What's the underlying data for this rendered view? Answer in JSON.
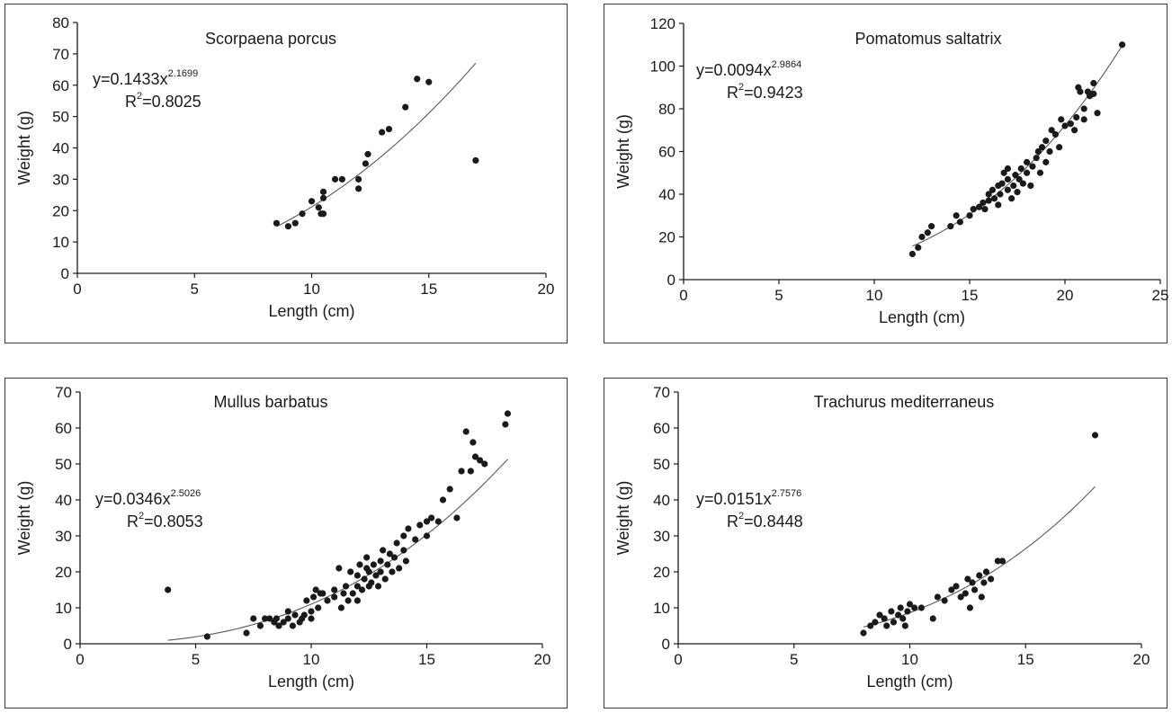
{
  "chart_data": [
    {
      "type": "scatter",
      "title": "Scorpaena porcus",
      "xlabel": "Length (cm)",
      "ylabel": "Weight (g)",
      "xlim": [
        0,
        20
      ],
      "ylim": [
        0,
        80
      ],
      "xticks": [
        "0",
        "5",
        "10",
        "15",
        "20"
      ],
      "yticks": [
        "0",
        "10",
        "20",
        "30",
        "40",
        "50",
        "60",
        "70",
        "80"
      ],
      "equation": {
        "prefix": "y=0.1433x",
        "exponent": "2.1699",
        "r2_label": "R",
        "r2_sup": "2",
        "r2_value": "=0.8025"
      },
      "fit": {
        "a": 0.1433,
        "b": 2.1699,
        "x_range": [
          8.5,
          17
        ]
      },
      "points": [
        [
          8.5,
          16
        ],
        [
          9,
          15
        ],
        [
          9.3,
          16
        ],
        [
          9.6,
          19
        ],
        [
          10,
          23
        ],
        [
          10.3,
          21
        ],
        [
          10.4,
          19
        ],
        [
          10.5,
          19
        ],
        [
          10.5,
          24
        ],
        [
          10.5,
          26
        ],
        [
          11,
          30
        ],
        [
          11.3,
          30
        ],
        [
          12,
          30
        ],
        [
          12,
          27
        ],
        [
          12.3,
          35
        ],
        [
          12.4,
          38
        ],
        [
          13,
          45
        ],
        [
          13.3,
          46
        ],
        [
          14,
          53
        ],
        [
          14.5,
          62
        ],
        [
          15,
          61
        ],
        [
          17,
          36
        ]
      ]
    },
    {
      "type": "scatter",
      "title": "Pomatomus saltatrix",
      "xlabel": "Length (cm)",
      "ylabel": "Weight (g)",
      "xlim": [
        0,
        25
      ],
      "ylim": [
        0,
        120
      ],
      "xticks": [
        "0",
        "5",
        "10",
        "15",
        "20",
        "25"
      ],
      "yticks": [
        "0",
        "20",
        "40",
        "60",
        "80",
        "100",
        "120"
      ],
      "equation": {
        "prefix": "y=0.0094x",
        "exponent": "2.9864",
        "r2_label": "R",
        "r2_sup": "2",
        "r2_value": "=0.9423"
      },
      "fit": {
        "a": 0.0094,
        "b": 2.9864,
        "x_range": [
          12,
          23
        ]
      },
      "points": [
        [
          12,
          12
        ],
        [
          12.3,
          15
        ],
        [
          12.5,
          20
        ],
        [
          12.8,
          22
        ],
        [
          13,
          25
        ],
        [
          14,
          25
        ],
        [
          14.3,
          30
        ],
        [
          14.5,
          27
        ],
        [
          15,
          30
        ],
        [
          15.2,
          33
        ],
        [
          15.5,
          34
        ],
        [
          15.7,
          36
        ],
        [
          15.8,
          33
        ],
        [
          16,
          37
        ],
        [
          16,
          40
        ],
        [
          16.2,
          42
        ],
        [
          16.3,
          38
        ],
        [
          16.5,
          35
        ],
        [
          16.5,
          44
        ],
        [
          16.6,
          40
        ],
        [
          16.7,
          45
        ],
        [
          16.8,
          50
        ],
        [
          17,
          42
        ],
        [
          17,
          47
        ],
        [
          17,
          52
        ],
        [
          17.2,
          38
        ],
        [
          17.3,
          44
        ],
        [
          17.4,
          49
        ],
        [
          17.5,
          41
        ],
        [
          17.6,
          47
        ],
        [
          17.7,
          52
        ],
        [
          17.8,
          45
        ],
        [
          18,
          50
        ],
        [
          18,
          55
        ],
        [
          18.2,
          44
        ],
        [
          18.3,
          53
        ],
        [
          18.5,
          57
        ],
        [
          18.6,
          60
        ],
        [
          18.7,
          50
        ],
        [
          18.8,
          62
        ],
        [
          19,
          55
        ],
        [
          19,
          65
        ],
        [
          19.2,
          60
        ],
        [
          19.3,
          70
        ],
        [
          19.5,
          68
        ],
        [
          19.7,
          62
        ],
        [
          19.8,
          75
        ],
        [
          20,
          72
        ],
        [
          20.3,
          73
        ],
        [
          20.5,
          70
        ],
        [
          20.6,
          76
        ],
        [
          20.7,
          90
        ],
        [
          20.8,
          88
        ],
        [
          21,
          80
        ],
        [
          21,
          75
        ],
        [
          21.2,
          88
        ],
        [
          21.3,
          86
        ],
        [
          21.5,
          87
        ],
        [
          21.5,
          92
        ],
        [
          21.7,
          78
        ],
        [
          23,
          110
        ]
      ]
    },
    {
      "type": "scatter",
      "title": "Mullus barbatus",
      "xlabel": "Length (cm)",
      "ylabel": "Weight (g)",
      "xlim": [
        0,
        20
      ],
      "ylim": [
        0,
        70
      ],
      "xticks": [
        "0",
        "5",
        "10",
        "15",
        "20"
      ],
      "yticks": [
        "0",
        "10",
        "20",
        "30",
        "40",
        "50",
        "60",
        "70"
      ],
      "equation": {
        "prefix": "y=0.0346x",
        "exponent": "2.5026",
        "r2_label": "R",
        "r2_sup": "2",
        "r2_value": "=0.8053"
      },
      "fit": {
        "a": 0.0346,
        "b": 2.5026,
        "x_range": [
          3.8,
          18.5
        ]
      },
      "points": [
        [
          3.8,
          15
        ],
        [
          5.5,
          2
        ],
        [
          7.2,
          3
        ],
        [
          7.5,
          7
        ],
        [
          7.8,
          5
        ],
        [
          8,
          7
        ],
        [
          8.2,
          7
        ],
        [
          8.4,
          6
        ],
        [
          8.5,
          7
        ],
        [
          8.6,
          5
        ],
        [
          8.8,
          6
        ],
        [
          9,
          7
        ],
        [
          9,
          9
        ],
        [
          9.2,
          5
        ],
        [
          9.3,
          8
        ],
        [
          9.5,
          6
        ],
        [
          9.6,
          7
        ],
        [
          9.7,
          8
        ],
        [
          9.8,
          12
        ],
        [
          10,
          7
        ],
        [
          10,
          9
        ],
        [
          10.1,
          13
        ],
        [
          10.2,
          15
        ],
        [
          10.3,
          10
        ],
        [
          10.4,
          14
        ],
        [
          10.5,
          14
        ],
        [
          10.7,
          12
        ],
        [
          11,
          13
        ],
        [
          11,
          15
        ],
        [
          11.2,
          21
        ],
        [
          11.3,
          10
        ],
        [
          11.4,
          14
        ],
        [
          11.5,
          16
        ],
        [
          11.6,
          12
        ],
        [
          11.7,
          20
        ],
        [
          11.8,
          14
        ],
        [
          12,
          12
        ],
        [
          12,
          16
        ],
        [
          12,
          19
        ],
        [
          12.1,
          22
        ],
        [
          12.2,
          15
        ],
        [
          12.3,
          18
        ],
        [
          12.4,
          21
        ],
        [
          12.4,
          24
        ],
        [
          12.5,
          16
        ],
        [
          12.5,
          20
        ],
        [
          12.6,
          17
        ],
        [
          12.7,
          22
        ],
        [
          12.8,
          19
        ],
        [
          12.9,
          16
        ],
        [
          13,
          23
        ],
        [
          13,
          20
        ],
        [
          13.1,
          26
        ],
        [
          13.2,
          18
        ],
        [
          13.3,
          22
        ],
        [
          13.4,
          25
        ],
        [
          13.5,
          20
        ],
        [
          13.6,
          24
        ],
        [
          13.7,
          28
        ],
        [
          13.8,
          21
        ],
        [
          14,
          26
        ],
        [
          14,
          30
        ],
        [
          14.1,
          23
        ],
        [
          14.2,
          32
        ],
        [
          14.5,
          29
        ],
        [
          14.7,
          33
        ],
        [
          15,
          34
        ],
        [
          15,
          30
        ],
        [
          15.2,
          35
        ],
        [
          15.5,
          34
        ],
        [
          15.7,
          40
        ],
        [
          16,
          43
        ],
        [
          16.3,
          35
        ],
        [
          16.5,
          48
        ],
        [
          16.7,
          59
        ],
        [
          16.9,
          48
        ],
        [
          17,
          56
        ],
        [
          17.1,
          52
        ],
        [
          17.3,
          51
        ],
        [
          17.5,
          50
        ],
        [
          18.4,
          61
        ],
        [
          18.5,
          64
        ]
      ]
    },
    {
      "type": "scatter",
      "title": "Trachurus mediterraneus",
      "xlabel": "Length (cm)",
      "ylabel": "Weight (g)",
      "xlim": [
        0,
        20
      ],
      "ylim": [
        0,
        70
      ],
      "xticks": [
        "0",
        "5",
        "10",
        "15",
        "20"
      ],
      "yticks": [
        "0",
        "10",
        "20",
        "30",
        "40",
        "50",
        "60",
        "70"
      ],
      "equation": {
        "prefix": "y=0.0151x",
        "exponent": "2.7576",
        "r2_label": "R",
        "r2_sup": "2",
        "r2_value": "=0.8448"
      },
      "fit": {
        "a": 0.0151,
        "b": 2.7576,
        "x_range": [
          8,
          18
        ]
      },
      "points": [
        [
          8,
          3
        ],
        [
          8.3,
          5
        ],
        [
          8.5,
          6
        ],
        [
          8.7,
          8
        ],
        [
          8.9,
          7
        ],
        [
          9,
          5
        ],
        [
          9.2,
          9
        ],
        [
          9.3,
          6
        ],
        [
          9.5,
          8
        ],
        [
          9.6,
          10
        ],
        [
          9.7,
          7
        ],
        [
          9.8,
          5
        ],
        [
          9.9,
          9
        ],
        [
          10,
          11
        ],
        [
          10.2,
          10
        ],
        [
          10.5,
          10
        ],
        [
          11,
          7
        ],
        [
          11.2,
          13
        ],
        [
          11.5,
          12
        ],
        [
          11.8,
          15
        ],
        [
          12,
          16
        ],
        [
          12.2,
          13
        ],
        [
          12.4,
          14
        ],
        [
          12.5,
          18
        ],
        [
          12.6,
          10
        ],
        [
          12.7,
          17
        ],
        [
          12.8,
          15
        ],
        [
          13,
          19
        ],
        [
          13.1,
          13
        ],
        [
          13.2,
          17
        ],
        [
          13.3,
          20
        ],
        [
          13.5,
          18
        ],
        [
          13.8,
          23
        ],
        [
          14,
          23
        ],
        [
          18,
          58
        ]
      ]
    }
  ]
}
